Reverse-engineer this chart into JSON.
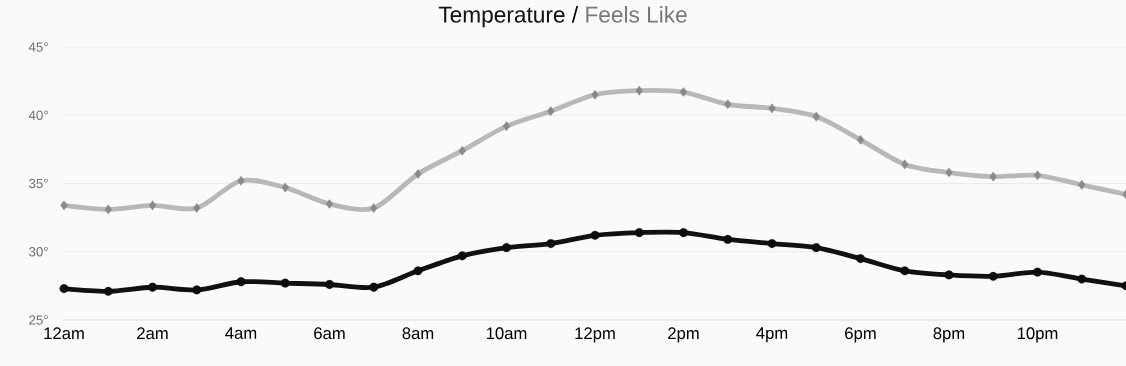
{
  "chart_data": {
    "type": "line",
    "annotations": [
      "/"
    ],
    "categories": [
      "12am",
      null,
      "2am",
      null,
      "4am",
      null,
      "6am",
      null,
      "8am",
      null,
      "10am",
      null,
      "12pm",
      null,
      "2pm",
      null,
      "4pm",
      null,
      "6pm",
      null,
      "8pm",
      null,
      "10pm",
      null,
      null
    ],
    "series": [
      {
        "name": "Feels Like",
        "color": "#b8b8b8",
        "marker": "diamond",
        "values": [
          33.4,
          33.1,
          33.4,
          33.2,
          35.2,
          34.7,
          33.5,
          33.2,
          35.7,
          37.4,
          39.2,
          40.3,
          41.5,
          41.8,
          41.7,
          40.8,
          40.5,
          39.9,
          38.2,
          36.4,
          35.8,
          35.5,
          35.6,
          34.9,
          34.2
        ]
      },
      {
        "name": "Temperature",
        "color": "#111111",
        "marker": "circle",
        "values": [
          27.3,
          27.1,
          27.4,
          27.2,
          27.8,
          27.7,
          27.6,
          27.4,
          28.6,
          29.7,
          30.3,
          30.6,
          31.2,
          31.4,
          31.4,
          30.9,
          30.6,
          30.3,
          29.5,
          28.6,
          28.3,
          28.2,
          28.5,
          28.0,
          27.5
        ]
      }
    ],
    "ylim": [
      25,
      45
    ],
    "yticks": [
      {
        "value": 25,
        "label": "25°"
      },
      {
        "value": 30,
        "label": "30°"
      },
      {
        "value": 35,
        "label": "35°"
      },
      {
        "value": 40,
        "label": "40°"
      },
      {
        "value": 45,
        "label": "45°"
      }
    ],
    "grid": "y",
    "legend": "top"
  }
}
